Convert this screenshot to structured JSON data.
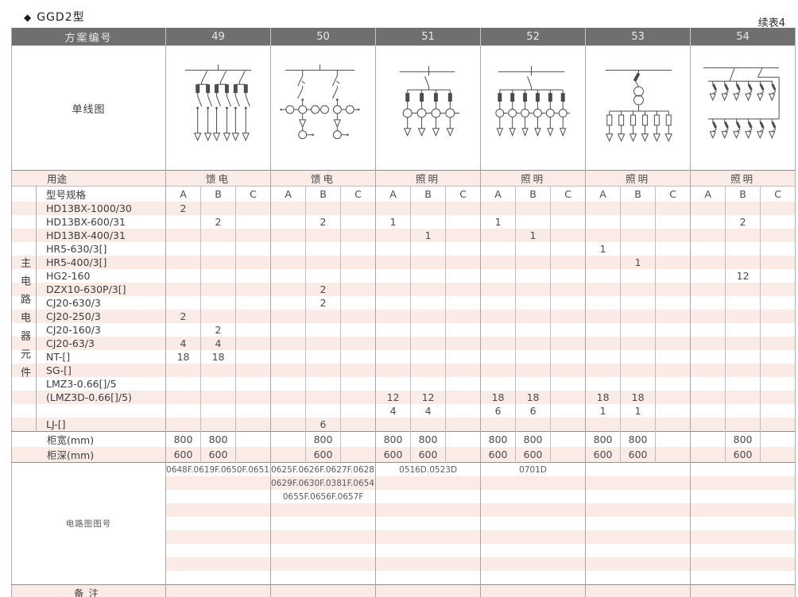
{
  "page": {
    "title_bullet": "◆",
    "title": "GGD2型",
    "continuation_note": "续表4"
  },
  "colors": {
    "header_bg": "#6f6f6f",
    "stripe_pink": "#fbebe7",
    "grid_line": "#b3b3b3",
    "heavy_line": "#8f8f8f"
  },
  "header": {
    "scheme_label": "方案编号",
    "scheme_numbers": [
      "49",
      "50",
      "51",
      "52",
      "53",
      "54"
    ]
  },
  "single_line_row": {
    "label": "单线图",
    "diagrams": [
      {
        "scheme": "49",
        "symbol": "feed-fused-knife-switch-6-outgoing-diagram"
      },
      {
        "scheme": "50",
        "symbol": "feed-2-branch-switch-ct-meter-diagram"
      },
      {
        "scheme": "51",
        "symbol": "lighting-4-branch-fuse-ct-diagram"
      },
      {
        "scheme": "52",
        "symbol": "lighting-6-branch-fuse-ct-diagram"
      },
      {
        "scheme": "53",
        "symbol": "lighting-transformer-6-branch-fuse-diagram"
      },
      {
        "scheme": "54",
        "symbol": "lighting-two-tier-12-branch-breaker-diagram"
      }
    ]
  },
  "usage_row": {
    "label": "用途",
    "values": [
      "馈电",
      "馈电",
      "照明",
      "照明",
      "照明",
      "照明"
    ]
  },
  "spec_row": {
    "label": "型号规格",
    "subcolumns": [
      "A",
      "B",
      "C"
    ]
  },
  "component_group_label": "主电路电器元件",
  "component_rows": [
    {
      "label": "HD13BX-1000/30",
      "cells": [
        "2",
        "",
        "",
        "",
        "",
        "",
        "",
        "",
        "",
        "",
        "",
        "",
        "",
        "",
        "",
        "",
        "",
        ""
      ]
    },
    {
      "label": "HD13BX-600/31",
      "cells": [
        "",
        "2",
        "",
        "",
        "2",
        "",
        "1",
        "",
        "",
        "1",
        "",
        "",
        "",
        "",
        "",
        "",
        "2",
        ""
      ]
    },
    {
      "label": "HD13BX-400/31",
      "cells": [
        "",
        "",
        "",
        "",
        "",
        "",
        "",
        "1",
        "",
        "",
        "1",
        "",
        "",
        "",
        "",
        "",
        "",
        ""
      ]
    },
    {
      "label": "HR5-630/3[]",
      "cells": [
        "",
        "",
        "",
        "",
        "",
        "",
        "",
        "",
        "",
        "",
        "",
        "",
        "1",
        "",
        "",
        "",
        "",
        ""
      ]
    },
    {
      "label": "HR5-400/3[]",
      "cells": [
        "",
        "",
        "",
        "",
        "",
        "",
        "",
        "",
        "",
        "",
        "",
        "",
        "",
        "1",
        "",
        "",
        "",
        ""
      ]
    },
    {
      "label": "HG2-160",
      "cells": [
        "",
        "",
        "",
        "",
        "",
        "",
        "",
        "",
        "",
        "",
        "",
        "",
        "",
        "",
        "",
        "",
        "12",
        ""
      ]
    },
    {
      "label": "DZX10-630P/3[]",
      "cells": [
        "",
        "",
        "",
        "",
        "2",
        "",
        "",
        "",
        "",
        "",
        "",
        "",
        "",
        "",
        "",
        "",
        "",
        ""
      ]
    },
    {
      "label": "CJ20-630/3",
      "cells": [
        "",
        "",
        "",
        "",
        "2",
        "",
        "",
        "",
        "",
        "",
        "",
        "",
        "",
        "",
        "",
        "",
        "",
        ""
      ]
    },
    {
      "label": "CJ20-250/3",
      "cells": [
        "2",
        "",
        "",
        "",
        "",
        "",
        "",
        "",
        "",
        "",
        "",
        "",
        "",
        "",
        "",
        "",
        "",
        ""
      ]
    },
    {
      "label": "CJ20-160/3",
      "cells": [
        "",
        "2",
        "",
        "",
        "",
        "",
        "",
        "",
        "",
        "",
        "",
        "",
        "",
        "",
        "",
        "",
        "",
        ""
      ]
    },
    {
      "label": "CJ20-63/3",
      "cells": [
        "4",
        "4",
        "",
        "",
        "",
        "",
        "",
        "",
        "",
        "",
        "",
        "",
        "",
        "",
        "",
        "",
        "",
        ""
      ]
    },
    {
      "label": "NT-[]",
      "cells": [
        "18",
        "18",
        "",
        "",
        "",
        "",
        "",
        "",
        "",
        "",
        "",
        "",
        "",
        "",
        "",
        "",
        "",
        ""
      ]
    },
    {
      "label": "SG-[]",
      "cells": [
        "",
        "",
        "",
        "",
        "",
        "",
        "",
        "",
        "",
        "",
        "",
        "",
        "",
        "",
        "",
        "",
        "",
        ""
      ]
    },
    {
      "label": "LMZ3-0.66[]/5",
      "cells": [
        "",
        "",
        "",
        "",
        "",
        "",
        "",
        "",
        "",
        "",
        "",
        "",
        "",
        "",
        "",
        "",
        "",
        ""
      ]
    },
    {
      "label": "(LMZ3D-0.66[]/5)",
      "cells": [
        "",
        "",
        "",
        "",
        "",
        "",
        "12",
        "12",
        "",
        "18",
        "18",
        "",
        "18",
        "18",
        "",
        "",
        "",
        ""
      ]
    },
    {
      "label": "",
      "cells": [
        "",
        "",
        "",
        "",
        "",
        "",
        "4",
        "4",
        "",
        "6",
        "6",
        "",
        "1",
        "1",
        "",
        "",
        "",
        ""
      ]
    },
    {
      "label": "LJ-[]",
      "cells": [
        "",
        "",
        "",
        "",
        "6",
        "",
        "",
        "",
        "",
        "",
        "",
        "",
        "",
        "",
        "",
        "",
        "",
        ""
      ]
    }
  ],
  "dimension_rows": [
    {
      "label": "柜宽(mm)",
      "cells": [
        "800",
        "800",
        "",
        "",
        "800",
        "",
        "800",
        "800",
        "",
        "800",
        "800",
        "",
        "800",
        "800",
        "",
        "",
        "800",
        ""
      ]
    },
    {
      "label": "柜深(mm)",
      "cells": [
        "600",
        "600",
        "",
        "",
        "600",
        "",
        "600",
        "600",
        "",
        "600",
        "600",
        "",
        "600",
        "600",
        "",
        "",
        "600",
        ""
      ]
    }
  ],
  "circuit_section": {
    "label": "电路图图号",
    "rows": [
      [
        "0648F.0619F.0650F.0651F",
        "0625F.0626F.0627F.0628F",
        "0516D.0523D",
        "0701D",
        "",
        ""
      ],
      [
        "",
        "0629F.0630F.0381F.0654F",
        "",
        "",
        "",
        ""
      ],
      [
        "",
        "0655F.0656F.0657F",
        "",
        "",
        "",
        ""
      ],
      [
        "",
        "",
        "",
        "",
        "",
        ""
      ],
      [
        "",
        "",
        "",
        "",
        "",
        ""
      ],
      [
        "",
        "",
        "",
        "",
        "",
        ""
      ],
      [
        "",
        "",
        "",
        "",
        "",
        ""
      ],
      [
        "",
        "",
        "",
        "",
        "",
        ""
      ],
      [
        "",
        "",
        "",
        "",
        "",
        ""
      ]
    ]
  },
  "remarks_row": {
    "label": "备注",
    "values": [
      "",
      "",
      "",
      "",
      "",
      ""
    ]
  }
}
